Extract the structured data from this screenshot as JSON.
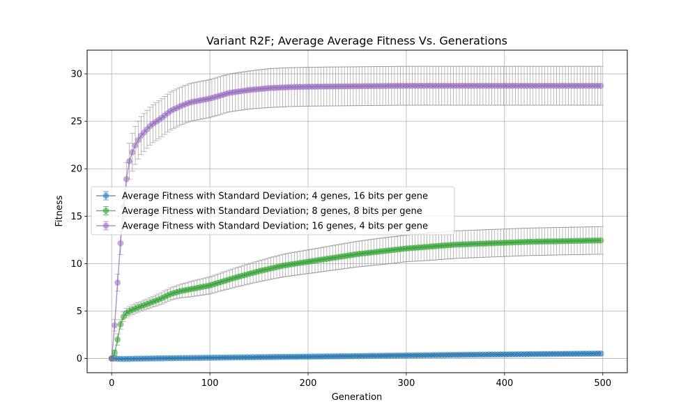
{
  "chart_data": {
    "type": "line",
    "title": "Variant R2F; Average Average Fitness Vs. Generations",
    "xlabel": "Generation",
    "ylabel": "Fitness",
    "xlim": [
      -25,
      525
    ],
    "ylim": [
      -1.5,
      32.5
    ],
    "xticks": [
      0,
      100,
      200,
      300,
      400,
      500
    ],
    "yticks": [
      0,
      5,
      10,
      15,
      20,
      25,
      30
    ],
    "grid": true,
    "legend_position": "center-left",
    "error_bar_color": "#808080",
    "series": [
      {
        "name": "Average Fitness with Standard Deviation; 4 genes, 16 bits per gene",
        "color": "#1f77b4",
        "x": [
          0,
          10,
          50,
          100,
          150,
          200,
          250,
          300,
          350,
          400,
          450,
          500
        ],
        "y": [
          0,
          -0.05,
          0.02,
          0.08,
          0.14,
          0.2,
          0.26,
          0.32,
          0.38,
          0.43,
          0.48,
          0.52
        ],
        "err": [
          0,
          0.03,
          0.05,
          0.07,
          0.09,
          0.1,
          0.12,
          0.13,
          0.15,
          0.16,
          0.17,
          0.18
        ]
      },
      {
        "name": "Average Fitness with Standard Deviation; 8 genes, 8 bits per gene",
        "color": "#2ca02c",
        "x": [
          0,
          3,
          6,
          9,
          12,
          15,
          20,
          30,
          40,
          50,
          60,
          70,
          80,
          100,
          125,
          150,
          175,
          200,
          225,
          250,
          275,
          300,
          325,
          350,
          375,
          400,
          425,
          450,
          475,
          500
        ],
        "y": [
          0,
          0.6,
          2.0,
          3.6,
          4.4,
          4.8,
          5.1,
          5.5,
          5.9,
          6.3,
          6.8,
          7.1,
          7.3,
          7.7,
          8.5,
          9.2,
          9.8,
          10.2,
          10.6,
          11.0,
          11.3,
          11.6,
          11.8,
          12.0,
          12.1,
          12.2,
          12.3,
          12.35,
          12.4,
          12.45
        ],
        "err": [
          0,
          0.3,
          0.6,
          0.5,
          0.5,
          0.5,
          0.5,
          0.5,
          0.55,
          0.6,
          0.65,
          0.7,
          0.8,
          0.9,
          1.0,
          1.1,
          1.2,
          1.25,
          1.3,
          1.35,
          1.4,
          1.4,
          1.45,
          1.45,
          1.45,
          1.45,
          1.45,
          1.45,
          1.45,
          1.45
        ]
      },
      {
        "name": "Average Fitness with Standard Deviation; 16 genes, 4 bits per gene",
        "color": "#9467bd",
        "x": [
          0,
          1,
          2,
          3,
          4,
          5,
          6,
          7,
          8,
          10,
          12,
          14,
          16,
          18,
          20,
          25,
          30,
          40,
          50,
          60,
          70,
          80,
          100,
          120,
          140,
          160,
          180,
          200,
          250,
          300,
          350,
          400,
          450,
          500
        ],
        "y": [
          0,
          1.0,
          2.2,
          3.5,
          5.0,
          6.5,
          8.0,
          9.4,
          10.8,
          13.5,
          16.0,
          18.0,
          19.8,
          20.8,
          21.5,
          22.7,
          23.5,
          24.6,
          25.3,
          26.1,
          26.6,
          27.0,
          27.4,
          28.0,
          28.3,
          28.5,
          28.6,
          28.65,
          28.7,
          28.75,
          28.75,
          28.75,
          28.75,
          28.75
        ],
        "err": [
          0,
          0.3,
          0.5,
          0.6,
          0.7,
          0.8,
          0.9,
          1.0,
          1.1,
          1.3,
          1.5,
          1.7,
          1.8,
          1.9,
          2.0,
          2.0,
          2.0,
          2.0,
          2.0,
          2.0,
          2.0,
          2.0,
          2.0,
          2.0,
          2.0,
          2.05,
          2.05,
          2.05,
          2.05,
          2.05,
          2.05,
          2.05,
          2.05,
          2.05
        ]
      }
    ]
  }
}
